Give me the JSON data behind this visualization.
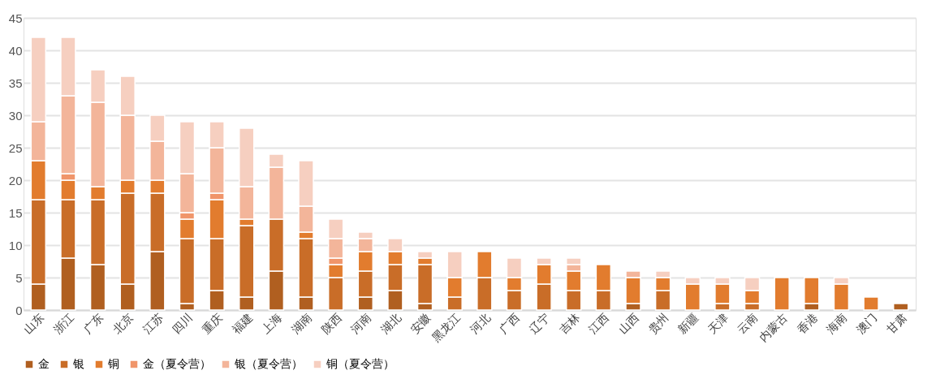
{
  "chart_data": {
    "type": "bar",
    "stacked": true,
    "categories": [
      "山东",
      "浙江",
      "广东",
      "北京",
      "江苏",
      "四川",
      "重庆",
      "福建",
      "上海",
      "湖南",
      "陕西",
      "河南",
      "湖北",
      "安徽",
      "黑龙江",
      "河北",
      "广西",
      "辽宁",
      "吉林",
      "江西",
      "山西",
      "贵州",
      "新疆",
      "天津",
      "云南",
      "内蒙古",
      "香港",
      "海南",
      "澳门",
      "甘肃"
    ],
    "series": [
      {
        "name": "金",
        "color": "#b05f20",
        "values": [
          4,
          8,
          7,
          4,
          9,
          1,
          3,
          2,
          6,
          2,
          0,
          2,
          3,
          1,
          0,
          0,
          0,
          0,
          0,
          0,
          1,
          0,
          0,
          0,
          0,
          0,
          1,
          0,
          0,
          1
        ]
      },
      {
        "name": "银",
        "color": "#c96d28",
        "values": [
          13,
          9,
          10,
          14,
          9,
          10,
          8,
          11,
          8,
          9,
          5,
          4,
          4,
          6,
          2,
          5,
          3,
          4,
          3,
          3,
          0,
          3,
          0,
          1,
          1,
          0,
          0,
          0,
          0,
          0
        ]
      },
      {
        "name": "铜",
        "color": "#e27c2e",
        "values": [
          6,
          3,
          2,
          2,
          2,
          3,
          6,
          1,
          0,
          1,
          2,
          3,
          2,
          1,
          3,
          4,
          2,
          3,
          3,
          4,
          4,
          2,
          4,
          3,
          2,
          5,
          4,
          4,
          2,
          0
        ]
      },
      {
        "name": "金（夏令营）",
        "color": "#f0956a",
        "values": [
          0,
          1,
          0,
          0,
          0,
          1,
          1,
          0,
          0,
          0,
          1,
          0,
          0,
          0,
          0,
          0,
          0,
          0,
          0,
          0,
          0,
          0,
          0,
          0,
          0,
          0,
          0,
          0,
          0,
          0
        ]
      },
      {
        "name": "银（夏令营）",
        "color": "#f3b59a",
        "values": [
          6,
          12,
          13,
          10,
          6,
          6,
          7,
          5,
          8,
          4,
          3,
          2,
          0,
          0,
          0,
          0,
          0,
          0,
          1,
          0,
          1,
          0,
          0,
          0,
          0,
          0,
          0,
          0,
          0,
          0
        ]
      },
      {
        "name": "铜（夏令营）",
        "color": "#f6cfc0",
        "values": [
          13,
          9,
          5,
          6,
          4,
          8,
          4,
          9,
          2,
          7,
          3,
          1,
          2,
          1,
          4,
          0,
          3,
          1,
          1,
          0,
          0,
          1,
          1,
          1,
          2,
          0,
          0,
          1,
          0,
          0
        ]
      }
    ],
    "ylim": [
      0,
      45
    ],
    "yticks": [
      0,
      5,
      10,
      15,
      20,
      25,
      30,
      35,
      40,
      45
    ],
    "grid": "y",
    "legend": "bottom"
  }
}
